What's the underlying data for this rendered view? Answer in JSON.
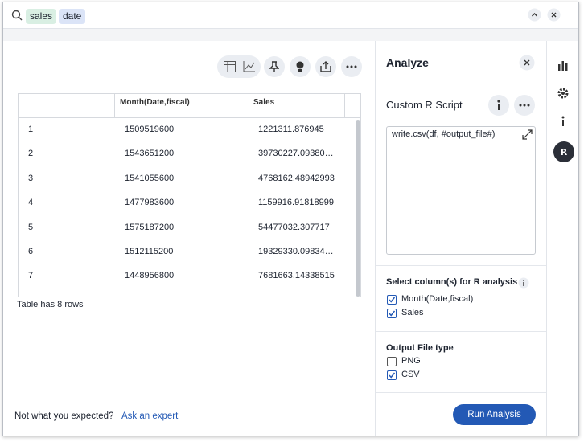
{
  "search": {
    "tokens": [
      "sales",
      "date"
    ]
  },
  "table": {
    "columns": [
      "Month(Date,fiscal)",
      "Sales"
    ],
    "rows": [
      [
        "1",
        "1509519600",
        "1221311.876945"
      ],
      [
        "2",
        "1543651200",
        "39730227.09380…"
      ],
      [
        "3",
        "1541055600",
        "4768162.48942993"
      ],
      [
        "4",
        "1477983600",
        "1159916.91818999"
      ],
      [
        "5",
        "1575187200",
        "54477032.307717"
      ],
      [
        "6",
        "1512115200",
        "19329330.09834…"
      ],
      [
        "7",
        "1448956800",
        "7681663.14338515"
      ]
    ]
  },
  "table_note": "Table has 8 rows",
  "footer": {
    "prompt": "Not what you expected?",
    "link": "Ask an expert"
  },
  "analyze": {
    "title": "Analyze",
    "script_title": "Custom R Script",
    "script": "write.csv(df,  #output_file#)",
    "columns_label": "Select column(s) for R analysis",
    "columns": [
      {
        "label": "Month(Date,fiscal)",
        "checked": true
      },
      {
        "label": "Sales",
        "checked": true
      }
    ],
    "output_label": "Output File type",
    "outputs": [
      {
        "label": "PNG",
        "checked": false
      },
      {
        "label": "CSV",
        "checked": true
      }
    ],
    "run": "Run Analysis"
  }
}
